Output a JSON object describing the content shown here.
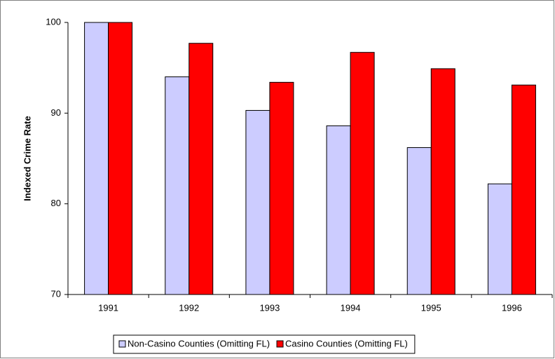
{
  "chart_data": {
    "type": "bar",
    "y_label": "Indexed Crime Rate",
    "categories": [
      "1991",
      "1992",
      "1993",
      "1994",
      "1995",
      "1996"
    ],
    "series": [
      {
        "name": "Non-Casino Counties (Omitting FL)",
        "color": "#ccccff",
        "values": [
          100,
          94.0,
          90.3,
          88.6,
          86.2,
          82.2
        ]
      },
      {
        "name": "Casino Counties (Omitting FL)",
        "color": "#ff0000",
        "values": [
          100,
          97.7,
          93.4,
          96.7,
          94.9,
          93.1
        ]
      }
    ],
    "ylim": [
      70,
      100
    ],
    "yticks": [
      70,
      80,
      90,
      100
    ],
    "grid": false
  }
}
